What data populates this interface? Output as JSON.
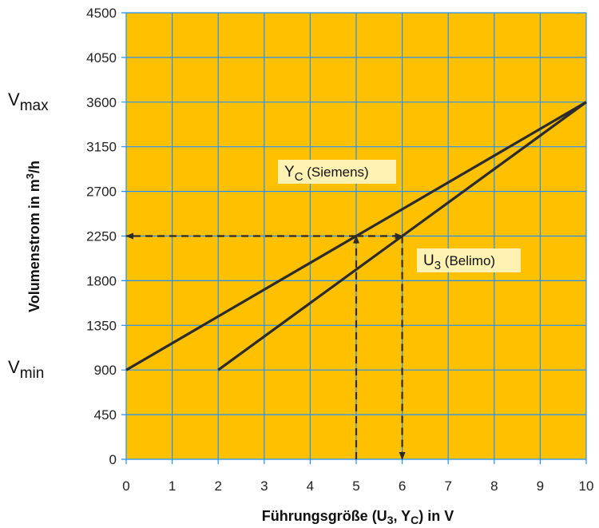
{
  "chart_data": {
    "type": "line",
    "xlabel": {
      "main": "Führungsgröße (U",
      "sub1": "3",
      "mid": ", Y",
      "sub2": "C",
      "end": ") in V"
    },
    "ylabel": {
      "main": "Volumenstrom in m",
      "sup": "3",
      "end": "/h"
    },
    "xlim": [
      0,
      10
    ],
    "ylim": [
      0,
      4500
    ],
    "x_ticks": [
      "0",
      "1",
      "2",
      "3",
      "4",
      "5",
      "6",
      "7",
      "8",
      "9",
      "10"
    ],
    "y_ticks": [
      "0",
      "450",
      "900",
      "1350",
      "1800",
      "2250",
      "2700",
      "3150",
      "3600",
      "4050",
      "4500"
    ],
    "grid": true,
    "colors": {
      "plot_bg": "#FFC000",
      "grid": "#1E90FF",
      "line": "#2B2B2B",
      "label_bg": "#FFF2B3"
    },
    "series": [
      {
        "label_main": "Y",
        "label_sub": "C",
        "label_rest": " (Siemens)",
        "x": [
          0,
          10
        ],
        "y": [
          900,
          3600
        ]
      },
      {
        "label_main": "U",
        "label_sub": "3",
        "label_rest": " (Belimo)",
        "x": [
          2,
          10
        ],
        "y": [
          900,
          3600
        ]
      }
    ],
    "reference_lines": [
      {
        "x": [
          5,
          5
        ],
        "y": [
          0,
          2250
        ],
        "arrow": "end"
      },
      {
        "x": [
          5,
          0
        ],
        "y": [
          2250,
          2250
        ],
        "arrow": "end"
      },
      {
        "x": [
          5,
          6
        ],
        "y": [
          2250,
          2250
        ],
        "arrow": "end"
      },
      {
        "x": [
          6,
          6
        ],
        "y": [
          2250,
          0
        ],
        "arrow": "end"
      }
    ],
    "annotations": [
      {
        "main": "V",
        "sub": "max",
        "y": 3600
      },
      {
        "main": "V",
        "sub": "min",
        "y": 900
      }
    ]
  }
}
